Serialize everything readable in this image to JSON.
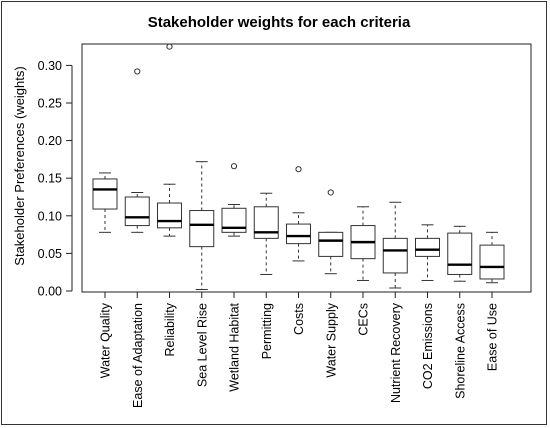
{
  "chart_data": {
    "type": "boxplot",
    "title": "Stakeholder weights for each criteria",
    "xlabel": "",
    "ylabel": "Stakeholder Preferences (weights)",
    "ylim": [
      0,
      0.33
    ],
    "yticks": [
      "0.00",
      "0.05",
      "0.10",
      "0.15",
      "0.20",
      "0.25",
      "0.30"
    ],
    "grid": false,
    "categories": [
      "Water Quality",
      "Ease of Adaptation",
      "Reliability",
      "Sea Level Rise",
      "Wetland Habitat",
      "Permitting",
      "Costs",
      "Water Supply",
      "CECs",
      "Nutrient Recovery",
      "CO2 Emissions",
      "Shoreline Access",
      "Ease of Use"
    ],
    "boxes": [
      {
        "min": 0.078,
        "q1": 0.109,
        "median": 0.135,
        "q3": 0.149,
        "max": 0.157,
        "outliers": []
      },
      {
        "min": 0.078,
        "q1": 0.087,
        "median": 0.098,
        "q3": 0.125,
        "max": 0.131,
        "outliers": [
          0.292
        ]
      },
      {
        "min": 0.073,
        "q1": 0.084,
        "median": 0.093,
        "q3": 0.117,
        "max": 0.142,
        "outliers": [
          0.325
        ]
      },
      {
        "min": 0.002,
        "q1": 0.059,
        "median": 0.088,
        "q3": 0.107,
        "max": 0.172,
        "outliers": []
      },
      {
        "min": 0.073,
        "q1": 0.078,
        "median": 0.084,
        "q3": 0.11,
        "max": 0.115,
        "outliers": [
          0.166
        ]
      },
      {
        "min": 0.022,
        "q1": 0.07,
        "median": 0.078,
        "q3": 0.112,
        "max": 0.13,
        "outliers": []
      },
      {
        "min": 0.04,
        "q1": 0.063,
        "median": 0.073,
        "q3": 0.089,
        "max": 0.104,
        "outliers": [
          0.162
        ]
      },
      {
        "min": 0.023,
        "q1": 0.046,
        "median": 0.067,
        "q3": 0.078,
        "max": 0.078,
        "outliers": [
          0.131
        ]
      },
      {
        "min": 0.014,
        "q1": 0.043,
        "median": 0.065,
        "q3": 0.087,
        "max": 0.112,
        "outliers": []
      },
      {
        "min": 0.004,
        "q1": 0.024,
        "median": 0.054,
        "q3": 0.07,
        "max": 0.118,
        "outliers": []
      },
      {
        "min": 0.014,
        "q1": 0.046,
        "median": 0.055,
        "q3": 0.07,
        "max": 0.088,
        "outliers": []
      },
      {
        "min": 0.013,
        "q1": 0.022,
        "median": 0.035,
        "q3": 0.077,
        "max": 0.086,
        "outliers": []
      },
      {
        "min": 0.011,
        "q1": 0.016,
        "median": 0.032,
        "q3": 0.061,
        "max": 0.078,
        "outliers": []
      }
    ]
  }
}
